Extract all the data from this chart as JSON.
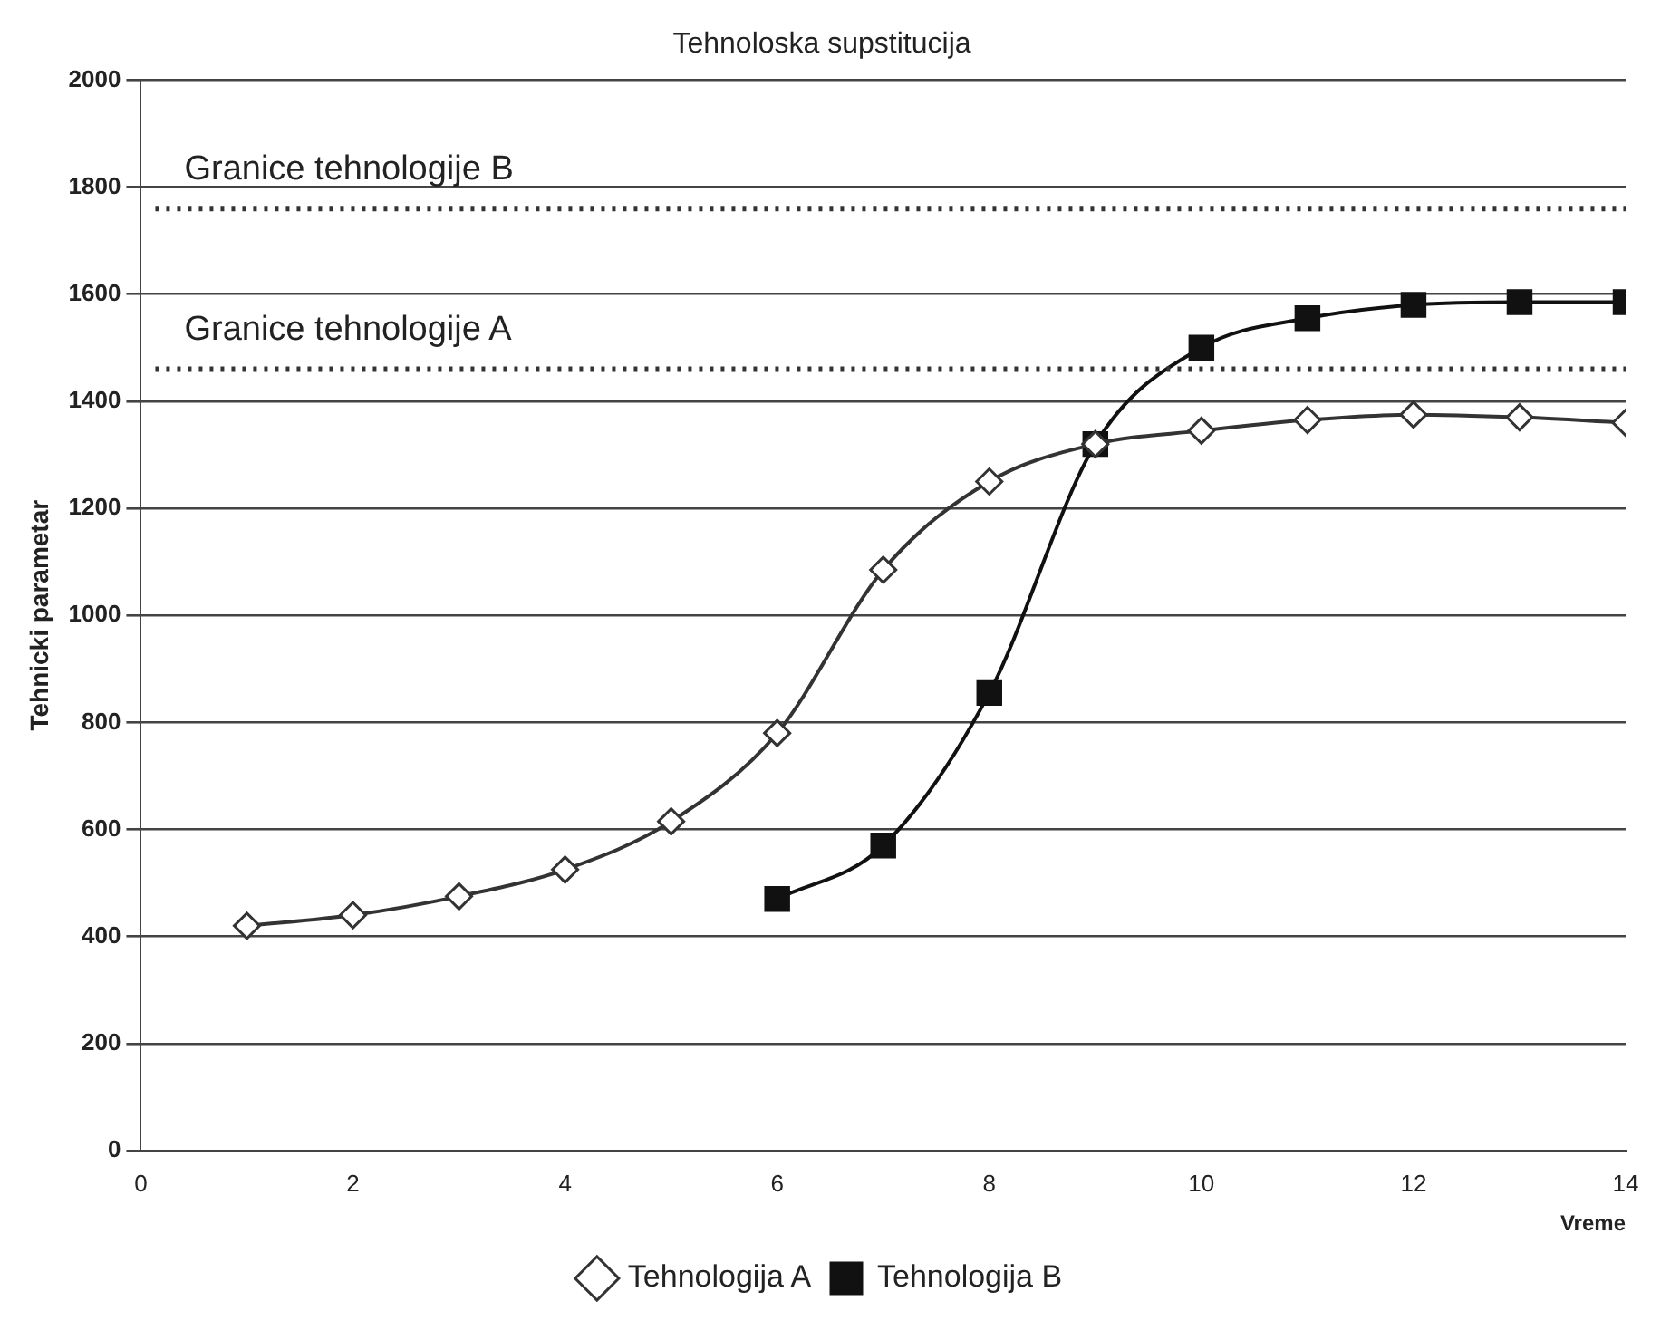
{
  "chart_data": {
    "type": "line",
    "title": "Tehnoloska supstitucija",
    "xlabel": "Vreme",
    "ylabel": "Tehnicki parametar",
    "xlim": [
      0,
      14
    ],
    "xticks": [
      0,
      2,
      4,
      6,
      8,
      10,
      12,
      14
    ],
    "ylim": [
      0,
      2000
    ],
    "yticks": [
      0,
      200,
      400,
      600,
      800,
      1000,
      1200,
      1400,
      1600,
      1800,
      2000
    ],
    "grid": "y",
    "legend": "bottom",
    "line_style": "solid",
    "series": [
      {
        "name": "Tehnologija A",
        "color": "#333333",
        "marker": "diamond",
        "x": [
          1,
          2,
          3,
          4,
          5,
          6,
          7,
          8,
          9,
          10,
          11,
          12,
          13,
          14
        ],
        "values": [
          420,
          440,
          475,
          525,
          615,
          780,
          1085,
          1250,
          1320,
          1345,
          1365,
          1375,
          1370,
          1360
        ]
      },
      {
        "name": "Tehnologija B",
        "color": "#111111",
        "marker": "square",
        "x": [
          6,
          7,
          8,
          9,
          10,
          11,
          12,
          13,
          14
        ],
        "values": [
          470,
          570,
          855,
          1320,
          1500,
          1555,
          1580,
          1585,
          1585
        ]
      }
    ],
    "ref_lines": [
      {
        "axis": "y",
        "value": 1760,
        "label": "Granice tehnologije B",
        "color": "#333333",
        "line_style": "dotted"
      },
      {
        "axis": "y",
        "value": 1460,
        "label": "Granice tehnologije A",
        "color": "#333333",
        "line_style": "dotted"
      }
    ]
  }
}
